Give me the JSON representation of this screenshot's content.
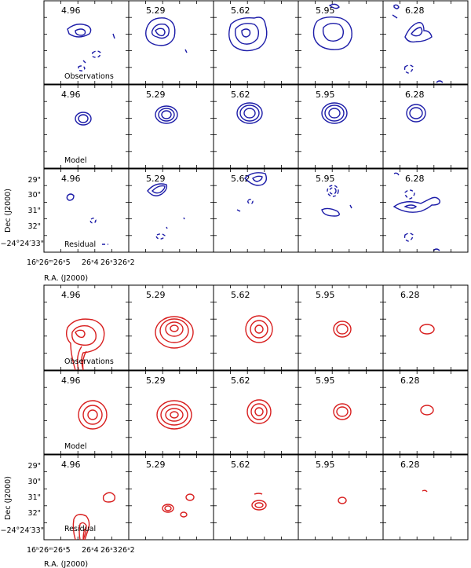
{
  "chart_data": {
    "type": "contour-panel-grid",
    "column_labels": [
      "4.96",
      "5.29",
      "5.62",
      "5.95",
      "6.28"
    ],
    "row_labels": [
      "Observations",
      "Model",
      "Residual"
    ],
    "sets": [
      {
        "name": "blue",
        "color": "#1c1ca8"
      },
      {
        "name": "red",
        "color": "#d81e1e"
      }
    ],
    "y_axis": {
      "label": "Dec (J2000)",
      "ticks": [
        "29\"",
        "30\"",
        "31\"",
        "32\"",
        "−24°24′33\""
      ]
    },
    "x_axis": {
      "label": "R.A. (J2000)",
      "ticks": [
        "16ʰ26ᵐ26ˢ5",
        "26ˢ4",
        "26ˢ3",
        "26ˢ2"
      ]
    }
  }
}
